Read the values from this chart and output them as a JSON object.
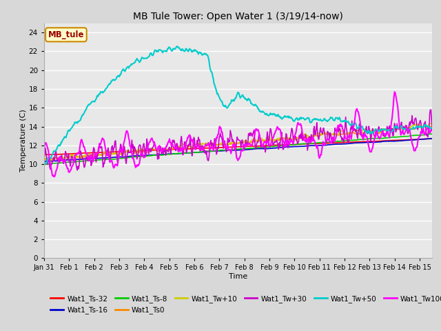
{
  "title": "MB Tule Tower: Open Water 1 (3/19/14-now)",
  "xlabel": "Time",
  "ylabel": "Temperature (C)",
  "ylim": [
    0,
    25
  ],
  "yticks": [
    0,
    2,
    4,
    6,
    8,
    10,
    12,
    14,
    16,
    18,
    20,
    22,
    24
  ],
  "xlim_days": [
    0,
    15.5
  ],
  "xtick_labels": [
    "Jan 31",
    "Feb 1",
    "Feb 2",
    "Feb 3",
    "Feb 4",
    "Feb 5",
    "Feb 6",
    "Feb 7",
    "Feb 8",
    "Feb 9",
    "Feb 10",
    "Feb 11",
    "Feb 12",
    "Feb 13",
    "Feb 14",
    "Feb 15"
  ],
  "xtick_positions": [
    0,
    1,
    2,
    3,
    4,
    5,
    6,
    7,
    8,
    9,
    10,
    11,
    12,
    13,
    14,
    15
  ],
  "fig_bg_color": "#d8d8d8",
  "plot_bg_color": "#e8e8e8",
  "grid_color": "#ffffff",
  "series": [
    {
      "label": "Wat1_Ts-32",
      "color": "#ff0000"
    },
    {
      "label": "Wat1_Ts-16",
      "color": "#0000cc"
    },
    {
      "label": "Wat1_Ts-8",
      "color": "#00cc00"
    },
    {
      "label": "Wat1_Ts0",
      "color": "#ff8800"
    },
    {
      "label": "Wat1_Tw+10",
      "color": "#cccc00"
    },
    {
      "label": "Wat1_Tw+30",
      "color": "#cc00cc"
    },
    {
      "label": "Wat1_Tw+50",
      "color": "#00cccc"
    },
    {
      "label": "Wat1_Tw100",
      "color": "#ff00ff"
    }
  ],
  "legend_box_color": "#ffffcc",
  "legend_box_border": "#cc8800",
  "legend_box_text": "MB_tule",
  "legend_box_text_color": "#990000"
}
